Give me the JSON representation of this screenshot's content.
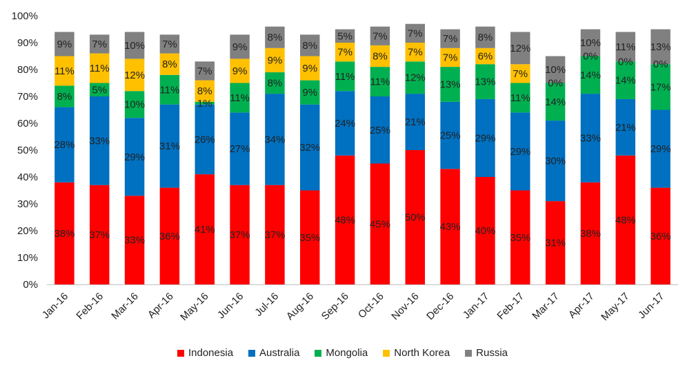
{
  "chart_data": {
    "type": "bar",
    "stacked": true,
    "title": "",
    "xlabel": "",
    "ylabel": "",
    "ylim": [
      0,
      100
    ],
    "y_ticks": [
      "0%",
      "10%",
      "20%",
      "30%",
      "40%",
      "50%",
      "60%",
      "70%",
      "80%",
      "90%",
      "100%"
    ],
    "grid": false,
    "legend_position": "bottom",
    "categories": [
      "Jan-16",
      "Feb-16",
      "Mar-16",
      "Apr-16",
      "May-16",
      "Jun-16",
      "Jul-16",
      "Aug-16",
      "Sep-16",
      "Oct-16",
      "Nov-16",
      "Dec-16",
      "Jan-17",
      "Feb-17",
      "Mar-17",
      "Apr-17",
      "May-17",
      "Jun-17"
    ],
    "series": [
      {
        "name": "Indonesia",
        "color": "#ff0000",
        "values": [
          38,
          37,
          33,
          36,
          41,
          37,
          37,
          35,
          48,
          45,
          50,
          43,
          40,
          35,
          31,
          38,
          48,
          36
        ]
      },
      {
        "name": "Australia",
        "color": "#0070c0",
        "values": [
          28,
          33,
          29,
          31,
          26,
          27,
          34,
          32,
          24,
          25,
          21,
          25,
          29,
          29,
          30,
          33,
          21,
          29
        ]
      },
      {
        "name": "Mongolia",
        "color": "#00b050",
        "values": [
          8,
          5,
          10,
          11,
          1,
          11,
          8,
          9,
          11,
          11,
          12,
          13,
          13,
          11,
          14,
          14,
          14,
          17
        ]
      },
      {
        "name": "North Korea",
        "color": "#ffc000",
        "values": [
          11,
          11,
          12,
          8,
          8,
          9,
          9,
          9,
          7,
          8,
          7,
          7,
          6,
          7,
          0,
          0,
          0,
          0
        ]
      },
      {
        "name": "Russia",
        "color": "#808080",
        "values": [
          9,
          7,
          10,
          7,
          7,
          9,
          8,
          8,
          5,
          7,
          7,
          7,
          8,
          12,
          10,
          10,
          11,
          13
        ]
      }
    ],
    "labels": [
      [
        "38%",
        "37%",
        "33%",
        "36%",
        "41%",
        "37%",
        "37%",
        "35%",
        "48%",
        "45%",
        "50%",
        "43%",
        "40%",
        "35%",
        "31%",
        "38%",
        "48%",
        "36%"
      ],
      [
        "28%",
        "33%",
        "29%",
        "31%",
        "26%",
        "27%",
        "34%",
        "32%",
        "24%",
        "25%",
        "21%",
        "25%",
        "29%",
        "29%",
        "30%",
        "33%",
        "21%",
        "29%"
      ],
      [
        "8%",
        "5%",
        "10%",
        "11%",
        "1%",
        "11%",
        "8%",
        "9%",
        "11%",
        "11%",
        "12%",
        "13%",
        "13%",
        "11%",
        "14%",
        "14%",
        "14%",
        "17%"
      ],
      [
        "11%",
        "11%",
        "12%",
        "8%",
        "8%",
        "9%",
        "9%",
        "9%",
        "7%",
        "8%",
        "7%",
        "7%",
        "6%",
        "7%",
        "",
        "",
        "",
        ""
      ],
      [
        "9%",
        "7%",
        "10%",
        "7%",
        "7%",
        "9%",
        "8%",
        "8%",
        "5%",
        "7%",
        "7%",
        "7%",
        "8%",
        "12%",
        "10%",
        "10%",
        "11%",
        "13%"
      ]
    ],
    "zero_labels": [
      {
        "category": "Mar-17",
        "text": "0%"
      },
      {
        "category": "Apr-17",
        "text": "0%"
      },
      {
        "category": "May-17",
        "text": "0%"
      },
      {
        "category": "Jun-17",
        "text": "0%"
      }
    ]
  }
}
